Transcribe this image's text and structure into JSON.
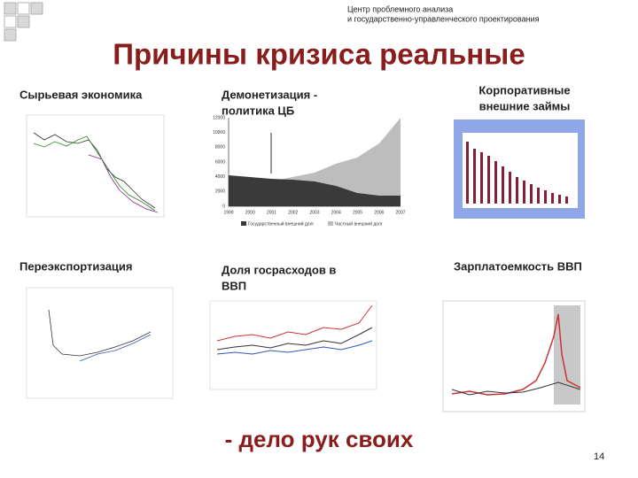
{
  "header": {
    "lines": [
      "Центр проблемного анализа",
      "и государственно-управленческого проектирования"
    ]
  },
  "title": "Причины кризиса реальные",
  "items": [
    {
      "label": [
        "Сырьевая экономика"
      ]
    },
    {
      "label": [
        "Демонетизация -",
        "политика ЦБ"
      ]
    },
    {
      "label": [
        "Корпоративные",
        "внешние займы"
      ]
    },
    {
      "label": [
        "Переэкспортизация"
      ]
    },
    {
      "label": [
        "Доля госрасходов в",
        "ВВП"
      ]
    },
    {
      "label": [
        "Зарплатоемкость ВВП"
      ]
    }
  ],
  "demonetization_chart": {
    "yticks": [
      "12000",
      "10000",
      "8000",
      "6000",
      "4000",
      "2000",
      "0"
    ],
    "xticks": [
      "1999",
      "2000",
      "2001",
      "2002",
      "2003",
      "2004",
      "2005",
      "2006",
      "2007"
    ],
    "legend": [
      "Государственный внешний долг",
      "Частный внешний долг"
    ]
  },
  "footer": "- дело рук своих",
  "page_number": "14"
}
